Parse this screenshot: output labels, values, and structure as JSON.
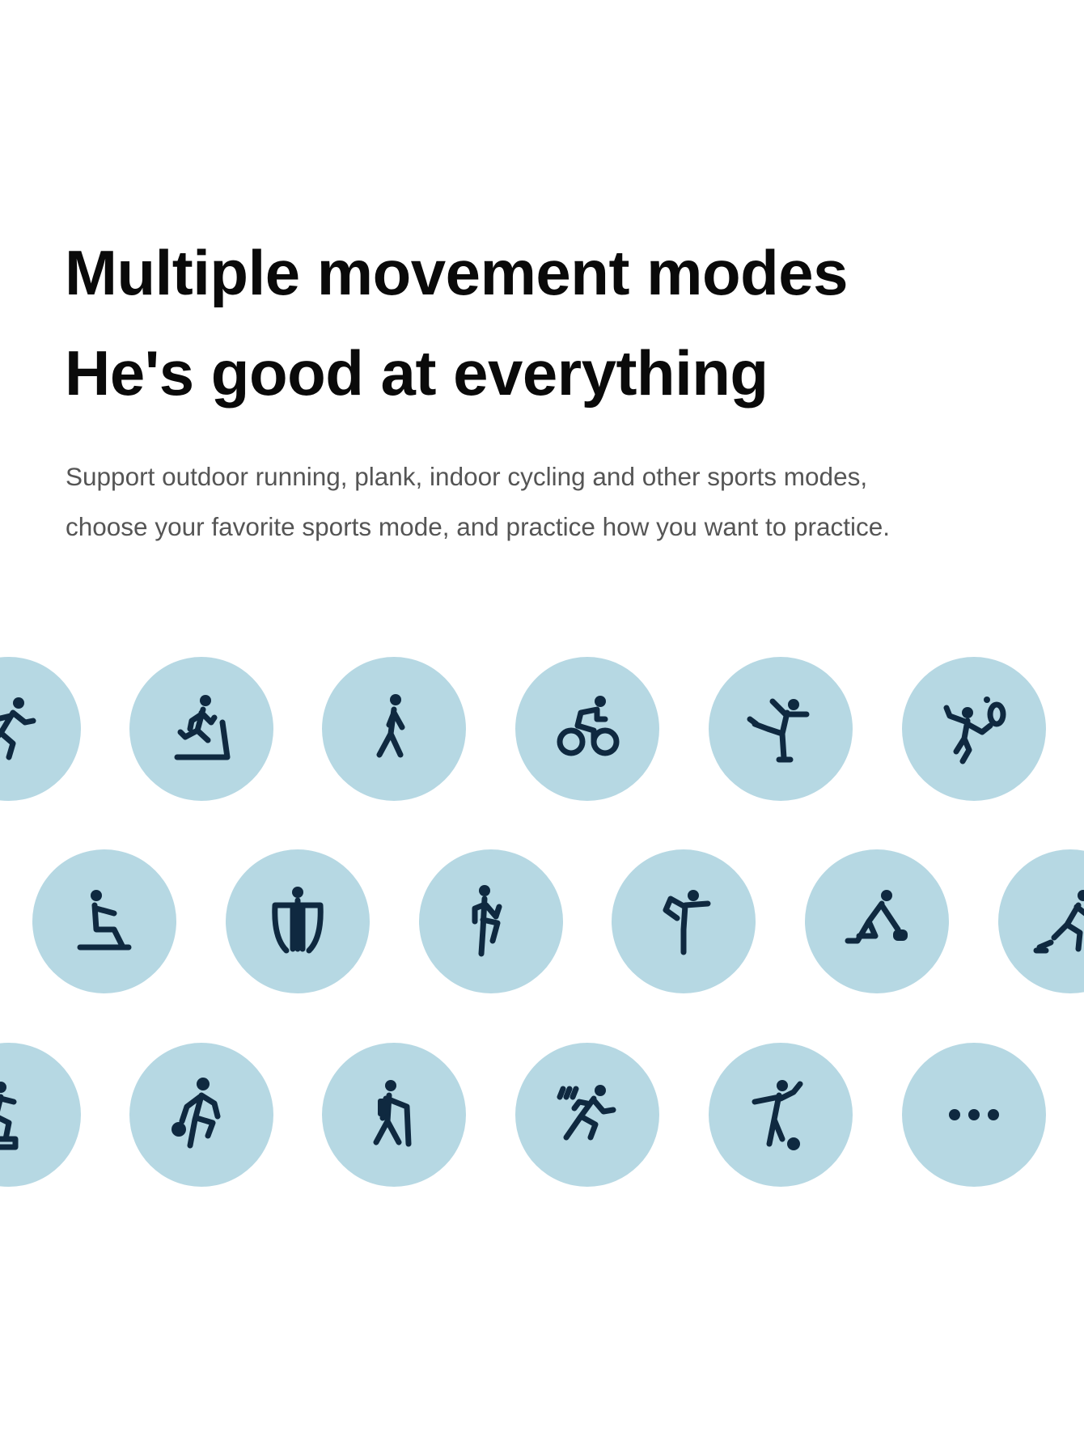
{
  "heading": {
    "line1": "Multiple movement modes",
    "line2": "He's good at everything"
  },
  "description": {
    "line1": "Support outdoor running, plank, indoor cycling and other sports modes,",
    "line2": "choose your favorite sports mode, and practice how you want to practice."
  },
  "colors": {
    "circle": "#b6d8e3",
    "icon": "#0f2940",
    "heading": "#0a0a0a",
    "text": "#555555"
  },
  "sport_icons": [
    [
      "outdoor-run-icon",
      "treadmill-icon",
      "walking-icon",
      "cycling-icon",
      "figure-skating-icon",
      "tennis-icon"
    ],
    [
      "rowing-icon",
      "strength-training-icon",
      "stepper-icon",
      "yoga-icon",
      "curling-icon",
      "sprint-icon"
    ],
    [
      "climbing-icon",
      "basketball-icon",
      "hiking-icon",
      "running-icon",
      "soccer-icon",
      "more-icon"
    ]
  ]
}
